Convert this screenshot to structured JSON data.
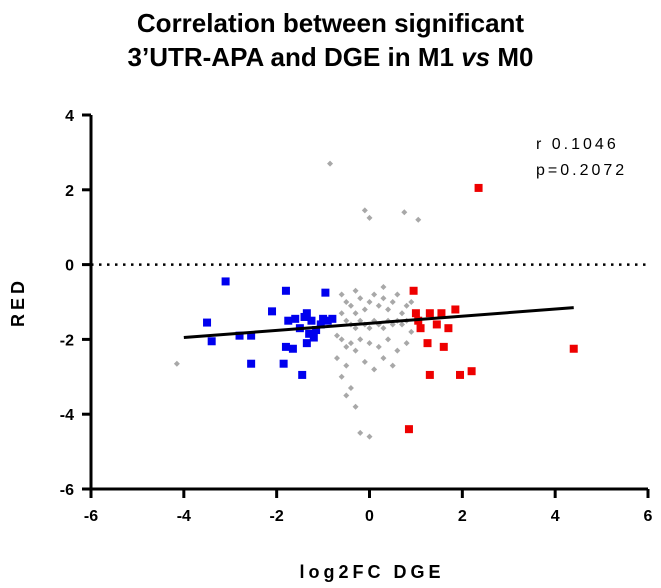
{
  "title_line1": "Correlation between significant",
  "title_line2_a": "3’UTR-APA and DGE in M1 ",
  "title_line2_vs": "vs",
  "title_line2_b": " M0",
  "chart_data": {
    "type": "scatter",
    "xlabel": "log2FC DGE",
    "ylabel": "RED",
    "xlim": [
      -6,
      6
    ],
    "ylim": [
      -6,
      4
    ],
    "xticks": [
      "-6",
      "-4",
      "-2",
      "0",
      "2",
      "4",
      "6"
    ],
    "yticks": [
      "4",
      "2",
      "0",
      "-2",
      "-4",
      "-6"
    ],
    "reference_line_y": 0,
    "annotation_r": "r 0.1046",
    "annotation_p": "p=0.2072",
    "trend_line": {
      "x": [
        -4.0,
        4.4
      ],
      "y": [
        -1.95,
        -1.15
      ]
    },
    "colors": {
      "blue": "#0000ee",
      "red": "#ee0000",
      "gray": "#a8a8a8",
      "line": "#000000"
    },
    "series": [
      {
        "color": "blue",
        "marker": "square",
        "points": [
          [
            -3.5,
            -1.55
          ],
          [
            -3.4,
            -2.05
          ],
          [
            -3.1,
            -0.45
          ],
          [
            -2.8,
            -1.9
          ],
          [
            -2.55,
            -1.9
          ],
          [
            -2.55,
            -2.65
          ],
          [
            -2.1,
            -1.25
          ],
          [
            -1.8,
            -0.7
          ],
          [
            -1.85,
            -2.65
          ],
          [
            -1.8,
            -2.2
          ],
          [
            -1.75,
            -1.5
          ],
          [
            -1.65,
            -2.25
          ],
          [
            -1.6,
            -1.45
          ],
          [
            -1.5,
            -1.7
          ],
          [
            -1.45,
            -2.95
          ],
          [
            -1.4,
            -1.4
          ],
          [
            -1.35,
            -1.3
          ],
          [
            -1.3,
            -1.85
          ],
          [
            -1.35,
            -2.1
          ],
          [
            -1.25,
            -1.5
          ],
          [
            -1.2,
            -1.95
          ],
          [
            -1.15,
            -1.75
          ],
          [
            -1.05,
            -1.6
          ],
          [
            -1.0,
            -1.45
          ],
          [
            -0.95,
            -0.75
          ],
          [
            -0.9,
            -1.5
          ],
          [
            -0.8,
            -1.45
          ]
        ]
      },
      {
        "color": "red",
        "marker": "square",
        "points": [
          [
            0.95,
            -0.7
          ],
          [
            1.0,
            -1.3
          ],
          [
            1.05,
            -1.5
          ],
          [
            1.1,
            -1.7
          ],
          [
            1.25,
            -2.1
          ],
          [
            1.3,
            -1.3
          ],
          [
            1.3,
            -2.95
          ],
          [
            1.45,
            -1.6
          ],
          [
            1.55,
            -1.3
          ],
          [
            1.6,
            -2.2
          ],
          [
            1.7,
            -1.7
          ],
          [
            1.85,
            -1.2
          ],
          [
            1.95,
            -2.95
          ],
          [
            2.2,
            -2.85
          ],
          [
            2.35,
            2.05
          ],
          [
            0.85,
            -4.4
          ],
          [
            4.4,
            -2.25
          ]
        ]
      },
      {
        "color": "gray",
        "marker": "diamond",
        "points": [
          [
            -4.15,
            -2.65
          ],
          [
            -0.85,
            2.7
          ],
          [
            -0.1,
            1.45
          ],
          [
            0.0,
            1.25
          ],
          [
            0.75,
            1.4
          ],
          [
            1.05,
            1.2
          ],
          [
            -0.3,
            -0.7
          ],
          [
            -0.6,
            -0.8
          ],
          [
            -0.5,
            -1.0
          ],
          [
            -0.4,
            -1.1
          ],
          [
            -0.3,
            -1.3
          ],
          [
            -0.2,
            -0.9
          ],
          [
            -0.1,
            -1.2
          ],
          [
            0.0,
            -1.0
          ],
          [
            0.1,
            -0.8
          ],
          [
            0.2,
            -1.1
          ],
          [
            0.3,
            -0.9
          ],
          [
            0.4,
            -1.2
          ],
          [
            0.5,
            -1.0
          ],
          [
            0.6,
            -0.8
          ],
          [
            0.7,
            -1.3
          ],
          [
            0.8,
            -1.1
          ],
          [
            -0.6,
            -1.3
          ],
          [
            -0.5,
            -1.5
          ],
          [
            -0.4,
            -1.6
          ],
          [
            -0.3,
            -1.7
          ],
          [
            -0.2,
            -1.5
          ],
          [
            -0.1,
            -1.6
          ],
          [
            0.0,
            -1.7
          ],
          [
            0.1,
            -1.5
          ],
          [
            0.2,
            -1.6
          ],
          [
            0.3,
            -1.7
          ],
          [
            0.4,
            -1.5
          ],
          [
            0.5,
            -1.6
          ],
          [
            0.6,
            -1.5
          ],
          [
            0.7,
            -1.6
          ],
          [
            0.8,
            -1.5
          ],
          [
            -0.7,
            -1.9
          ],
          [
            -0.6,
            -2.0
          ],
          [
            -0.5,
            -2.2
          ],
          [
            -0.4,
            -2.1
          ],
          [
            -0.3,
            -2.3
          ],
          [
            -0.2,
            -2.0
          ],
          [
            0.0,
            -2.1
          ],
          [
            0.2,
            -2.2
          ],
          [
            0.4,
            -2.0
          ],
          [
            0.6,
            -2.3
          ],
          [
            0.8,
            -2.1
          ],
          [
            -0.7,
            -2.5
          ],
          [
            -0.5,
            -2.7
          ],
          [
            -0.6,
            -3.0
          ],
          [
            -0.4,
            -3.3
          ],
          [
            -0.3,
            -3.8
          ],
          [
            -0.5,
            -3.5
          ],
          [
            -0.2,
            -4.5
          ],
          [
            0.0,
            -4.6
          ],
          [
            -0.1,
            -2.6
          ],
          [
            0.1,
            -2.8
          ],
          [
            0.3,
            -2.5
          ],
          [
            0.5,
            -2.7
          ],
          [
            0.9,
            -1.8
          ],
          [
            0.3,
            -0.6
          ],
          [
            0.9,
            -1.0
          ]
        ]
      }
    ]
  }
}
